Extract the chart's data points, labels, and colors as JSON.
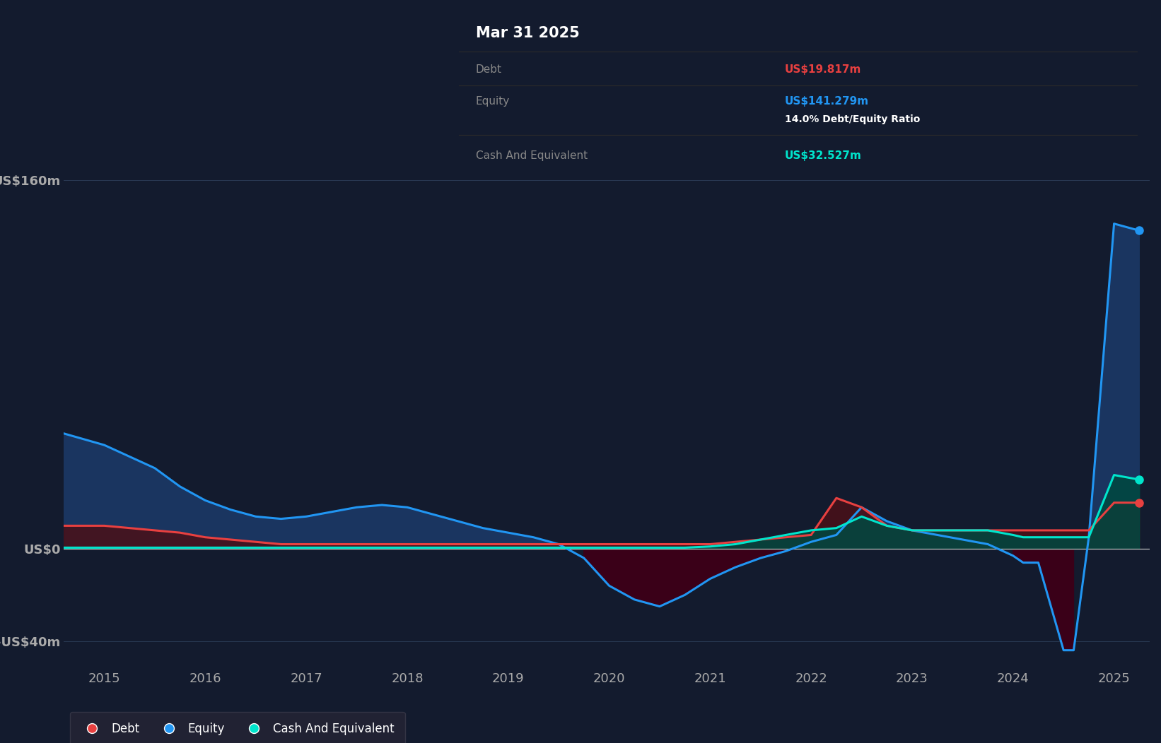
{
  "bg_color": "#131b2e",
  "plot_bg_color": "#131b2e",
  "grid_color": "#2a3a55",
  "tick_label_color": "#aaaaaa",
  "debt_color": "#e84040",
  "equity_color": "#2196f3",
  "cash_color": "#00e5cc",
  "equity_fill_pos": "#1a3560",
  "equity_fill_neg": "#3a0018",
  "debt_fill_pos": "#4a1018",
  "cash_fill_pos": "#004840",
  "tooltip_bg": "#050808",
  "tooltip_border": "#3a3a3a",
  "legend_bg": "#252535",
  "ylim": [
    -52,
    180
  ],
  "yticks": [
    -40,
    0,
    160
  ],
  "ytick_labels": [
    "-US$40m",
    "US$0",
    "US$160m"
  ],
  "xtick_positions": [
    2015,
    2016,
    2017,
    2018,
    2019,
    2020,
    2021,
    2022,
    2023,
    2024,
    2025
  ],
  "xtick_labels": [
    "2015",
    "2016",
    "2017",
    "2018",
    "2019",
    "2020",
    "2021",
    "2022",
    "2023",
    "2024",
    "2025"
  ],
  "tooltip": {
    "date": "Mar 31 2025",
    "debt_label": "Debt",
    "debt_value": "US$19.817m",
    "equity_label": "Equity",
    "equity_value": "US$141.279m",
    "ratio_text": "14.0% Debt/Equity Ratio",
    "cash_label": "Cash And Equivalent",
    "cash_value": "US$32.527m"
  },
  "legend_items": [
    {
      "label": "Debt",
      "color": "#e84040"
    },
    {
      "label": "Equity",
      "color": "#2196f3"
    },
    {
      "label": "Cash And Equivalent",
      "color": "#00e5cc"
    }
  ],
  "time_points": [
    2014.6,
    2015.0,
    2015.25,
    2015.5,
    2015.75,
    2016.0,
    2016.25,
    2016.5,
    2016.75,
    2017.0,
    2017.25,
    2017.5,
    2017.75,
    2018.0,
    2018.25,
    2018.5,
    2018.75,
    2019.0,
    2019.25,
    2019.5,
    2019.75,
    2020.0,
    2020.25,
    2020.5,
    2020.75,
    2021.0,
    2021.25,
    2021.5,
    2021.75,
    2022.0,
    2022.25,
    2022.5,
    2022.75,
    2023.0,
    2023.25,
    2023.5,
    2023.75,
    2024.0,
    2024.1,
    2024.25,
    2024.5,
    2024.6,
    2024.75,
    2025.0,
    2025.25
  ],
  "equity": [
    50,
    45,
    40,
    35,
    27,
    21,
    17,
    14,
    13,
    14,
    16,
    18,
    19,
    18,
    15,
    12,
    9,
    7,
    5,
    2,
    -4,
    -16,
    -22,
    -25,
    -20,
    -13,
    -8,
    -4,
    -1,
    3,
    6,
    18,
    12,
    8,
    6,
    4,
    2,
    -3,
    -6,
    -6,
    -44,
    -44,
    5,
    141,
    138
  ],
  "debt": [
    10,
    10,
    9,
    8,
    7,
    5,
    4,
    3,
    2,
    2,
    2,
    2,
    2,
    2,
    2,
    2,
    2,
    2,
    2,
    2,
    2,
    2,
    2,
    2,
    2,
    2,
    3,
    4,
    5,
    6,
    22,
    18,
    10,
    8,
    8,
    8,
    8,
    8,
    8,
    8,
    8,
    8,
    8,
    20,
    20
  ],
  "cash": [
    0.5,
    0.5,
    0.5,
    0.5,
    0.5,
    0.5,
    0.5,
    0.5,
    0.5,
    0.5,
    0.5,
    0.5,
    0.5,
    0.5,
    0.5,
    0.5,
    0.5,
    0.5,
    0.5,
    0.5,
    0.5,
    0.5,
    0.5,
    0.5,
    0.5,
    1,
    2,
    4,
    6,
    8,
    9,
    14,
    10,
    8,
    8,
    8,
    8,
    6,
    5,
    5,
    5,
    5,
    5,
    32,
    30
  ]
}
